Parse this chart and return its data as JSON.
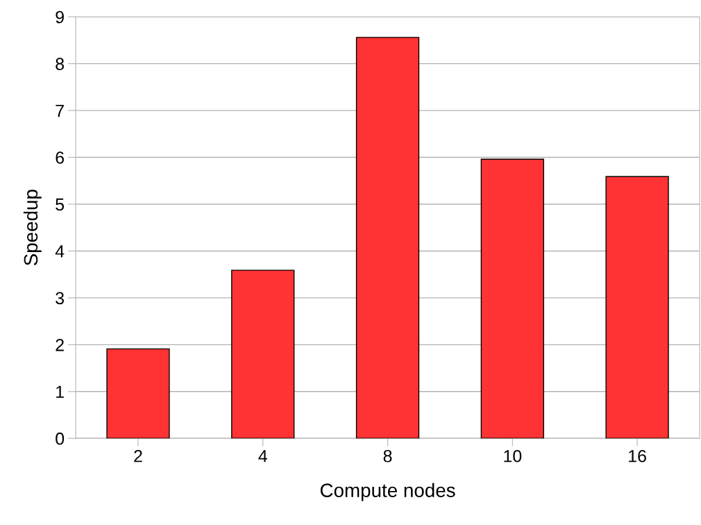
{
  "chart_data": {
    "type": "bar",
    "xlabel": "Compute nodes",
    "ylabel": "Speedup",
    "categories": [
      "2",
      "4",
      "8",
      "10",
      "16"
    ],
    "values": [
      1.91,
      3.59,
      8.56,
      5.96,
      5.59
    ],
    "color": "#ff3333",
    "ylim": [
      0,
      9
    ],
    "yticks": [
      0,
      1,
      2,
      3,
      4,
      5,
      6,
      7,
      8,
      9
    ],
    "grid": "y",
    "legend": false
  }
}
